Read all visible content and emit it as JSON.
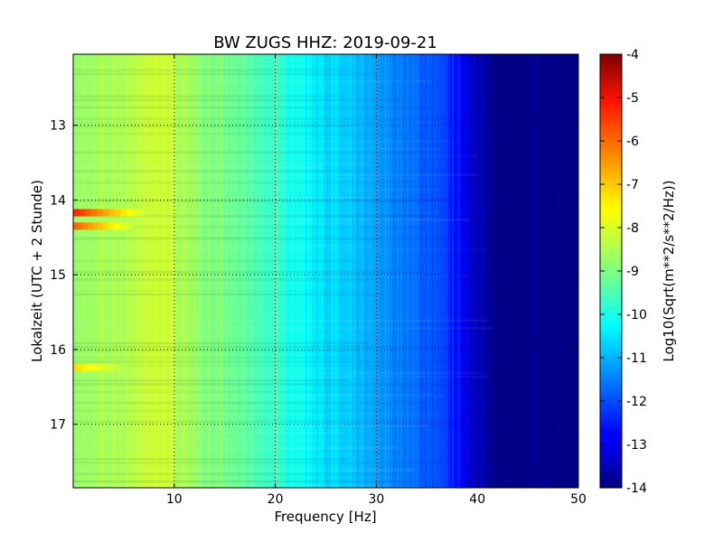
{
  "chart_data": {
    "type": "heatmap",
    "title": "BW ZUGS HHZ: 2019-09-21",
    "xlabel": "Frequency [Hz]",
    "ylabel": "Lokalzeit (UTC + 2 Stunde)",
    "xlim": [
      0,
      50
    ],
    "ylim": [
      12.05,
      17.85
    ],
    "y_inverted": true,
    "xticks": [
      "10",
      "20",
      "30",
      "40",
      "50"
    ],
    "yticks": [
      "13",
      "14",
      "15",
      "16",
      "17"
    ],
    "grid": true,
    "colormap": "jet",
    "colorbar": {
      "label": "Log10(Sqrt(m**2/s**2/Hz))",
      "range": [
        -14,
        -4
      ],
      "ticks": [
        "-4",
        "-5",
        "-6",
        "-7",
        "-8",
        "-9",
        "-10",
        "-11",
        "-12",
        "-13",
        "-14"
      ]
    },
    "baseline_profile": {
      "frequency_hz": [
        0,
        5,
        9,
        12,
        20,
        24,
        30,
        36,
        38,
        40,
        42,
        50
      ],
      "log_amplitude": [
        -8.8,
        -8.5,
        -8.2,
        -8.8,
        -9.7,
        -10.4,
        -11.2,
        -12.0,
        -12.6,
        -13.4,
        -14.0,
        -14.0
      ]
    },
    "bright_events": [
      {
        "time": 14.17,
        "freq_from": 0,
        "freq_to": 7,
        "peak": -5.6
      },
      {
        "time": 14.35,
        "freq_from": 0,
        "freq_to": 6,
        "peak": -6.2
      },
      {
        "time": 16.24,
        "freq_from": 0,
        "freq_to": 5,
        "peak": -7.4
      }
    ]
  }
}
